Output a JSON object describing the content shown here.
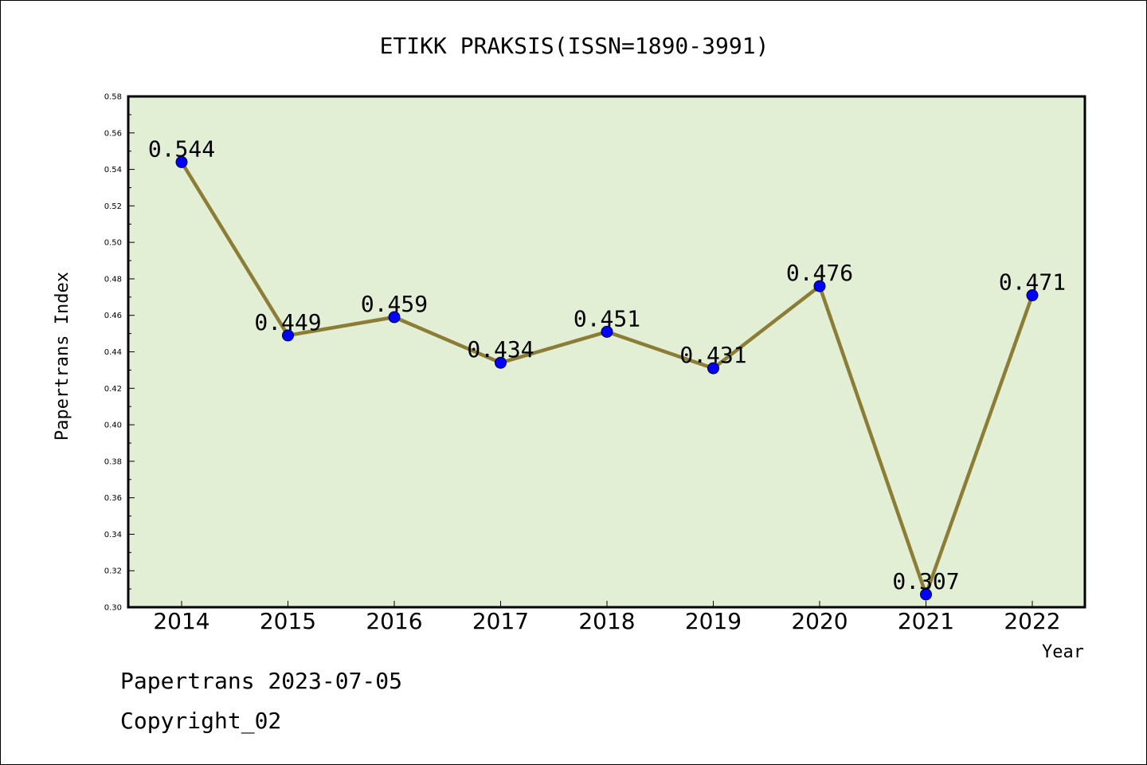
{
  "chart_data": {
    "type": "line",
    "title": "ETIKK PRAKSIS(ISSN=1890-3991)",
    "xlabel": "Year",
    "ylabel": "Papertrans Index",
    "categories": [
      "2014",
      "2015",
      "2016",
      "2017",
      "2018",
      "2019",
      "2020",
      "2021",
      "2022"
    ],
    "series": [
      {
        "values": [
          0.544,
          0.449,
          0.459,
          0.434,
          0.451,
          0.431,
          0.476,
          0.307,
          0.471
        ],
        "data_labels": [
          "0.544",
          "0.449",
          "0.459",
          "0.434",
          "0.451",
          "0.431",
          "0.476",
          "0.307",
          "0.471"
        ]
      }
    ],
    "ylim": [
      0.3,
      0.58
    ],
    "yticks": [
      "0.30",
      "0.32",
      "0.34",
      "0.36",
      "0.38",
      "0.40",
      "0.42",
      "0.44",
      "0.46",
      "0.48",
      "0.50",
      "0.52",
      "0.54",
      "0.56",
      "0.58"
    ],
    "grid": false,
    "colors": {
      "plot_background": "#e2efd5",
      "line": "#8b7d35",
      "marker": "#0000ff"
    }
  },
  "footer": {
    "date_line": "Papertrans 2023-07-05",
    "copyright_line": "Copyright_02"
  }
}
